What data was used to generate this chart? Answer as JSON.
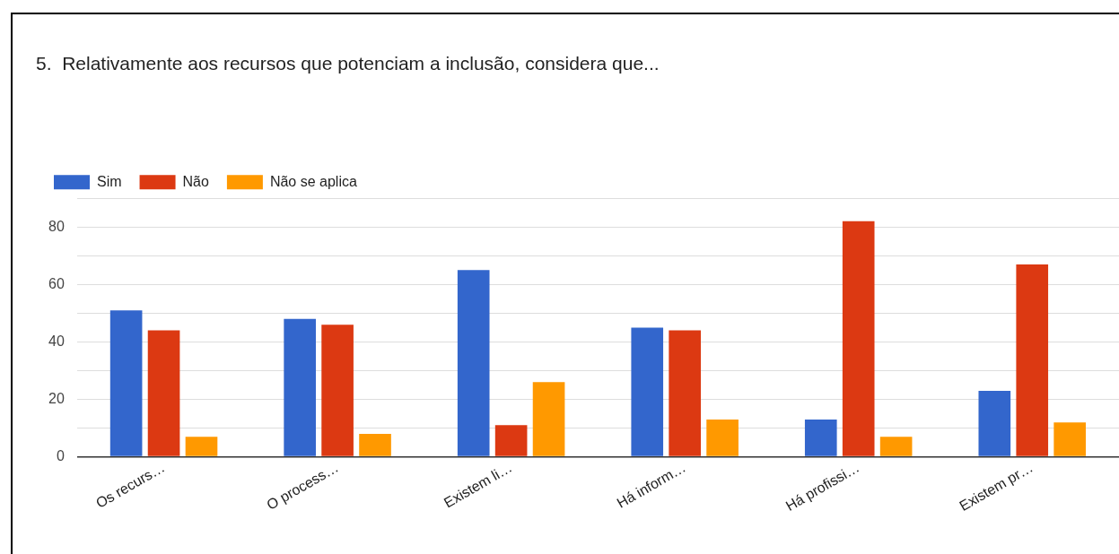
{
  "chart_data": {
    "type": "bar",
    "title": "5.  Relativamente aos recursos que potenciam a inclusão, considera que...",
    "categories": [
      "Os recurs…",
      "O process…",
      "Existem li…",
      "Há inform…",
      "Há profissi…",
      "Existem pr…"
    ],
    "series": [
      {
        "name": "Sim",
        "color": "#3366cc",
        "values": [
          51,
          48,
          65,
          45,
          13,
          23
        ]
      },
      {
        "name": "Não",
        "color": "#dc3912",
        "values": [
          44,
          46,
          11,
          44,
          82,
          67
        ]
      },
      {
        "name": "Não se aplica",
        "color": "#ff9900",
        "values": [
          7,
          8,
          26,
          13,
          7,
          12
        ]
      }
    ],
    "ylim": [
      0,
      90
    ],
    "yticks": [
      0,
      {
        "value": 10,
        "label": null
      },
      20,
      {
        "value": 30,
        "label": null
      },
      40,
      {
        "value": 50,
        "label": null
      },
      60,
      {
        "value": 70,
        "label": null
      },
      80,
      {
        "value": 90,
        "label": null
      }
    ],
    "grid": "y",
    "legend": "top left"
  }
}
